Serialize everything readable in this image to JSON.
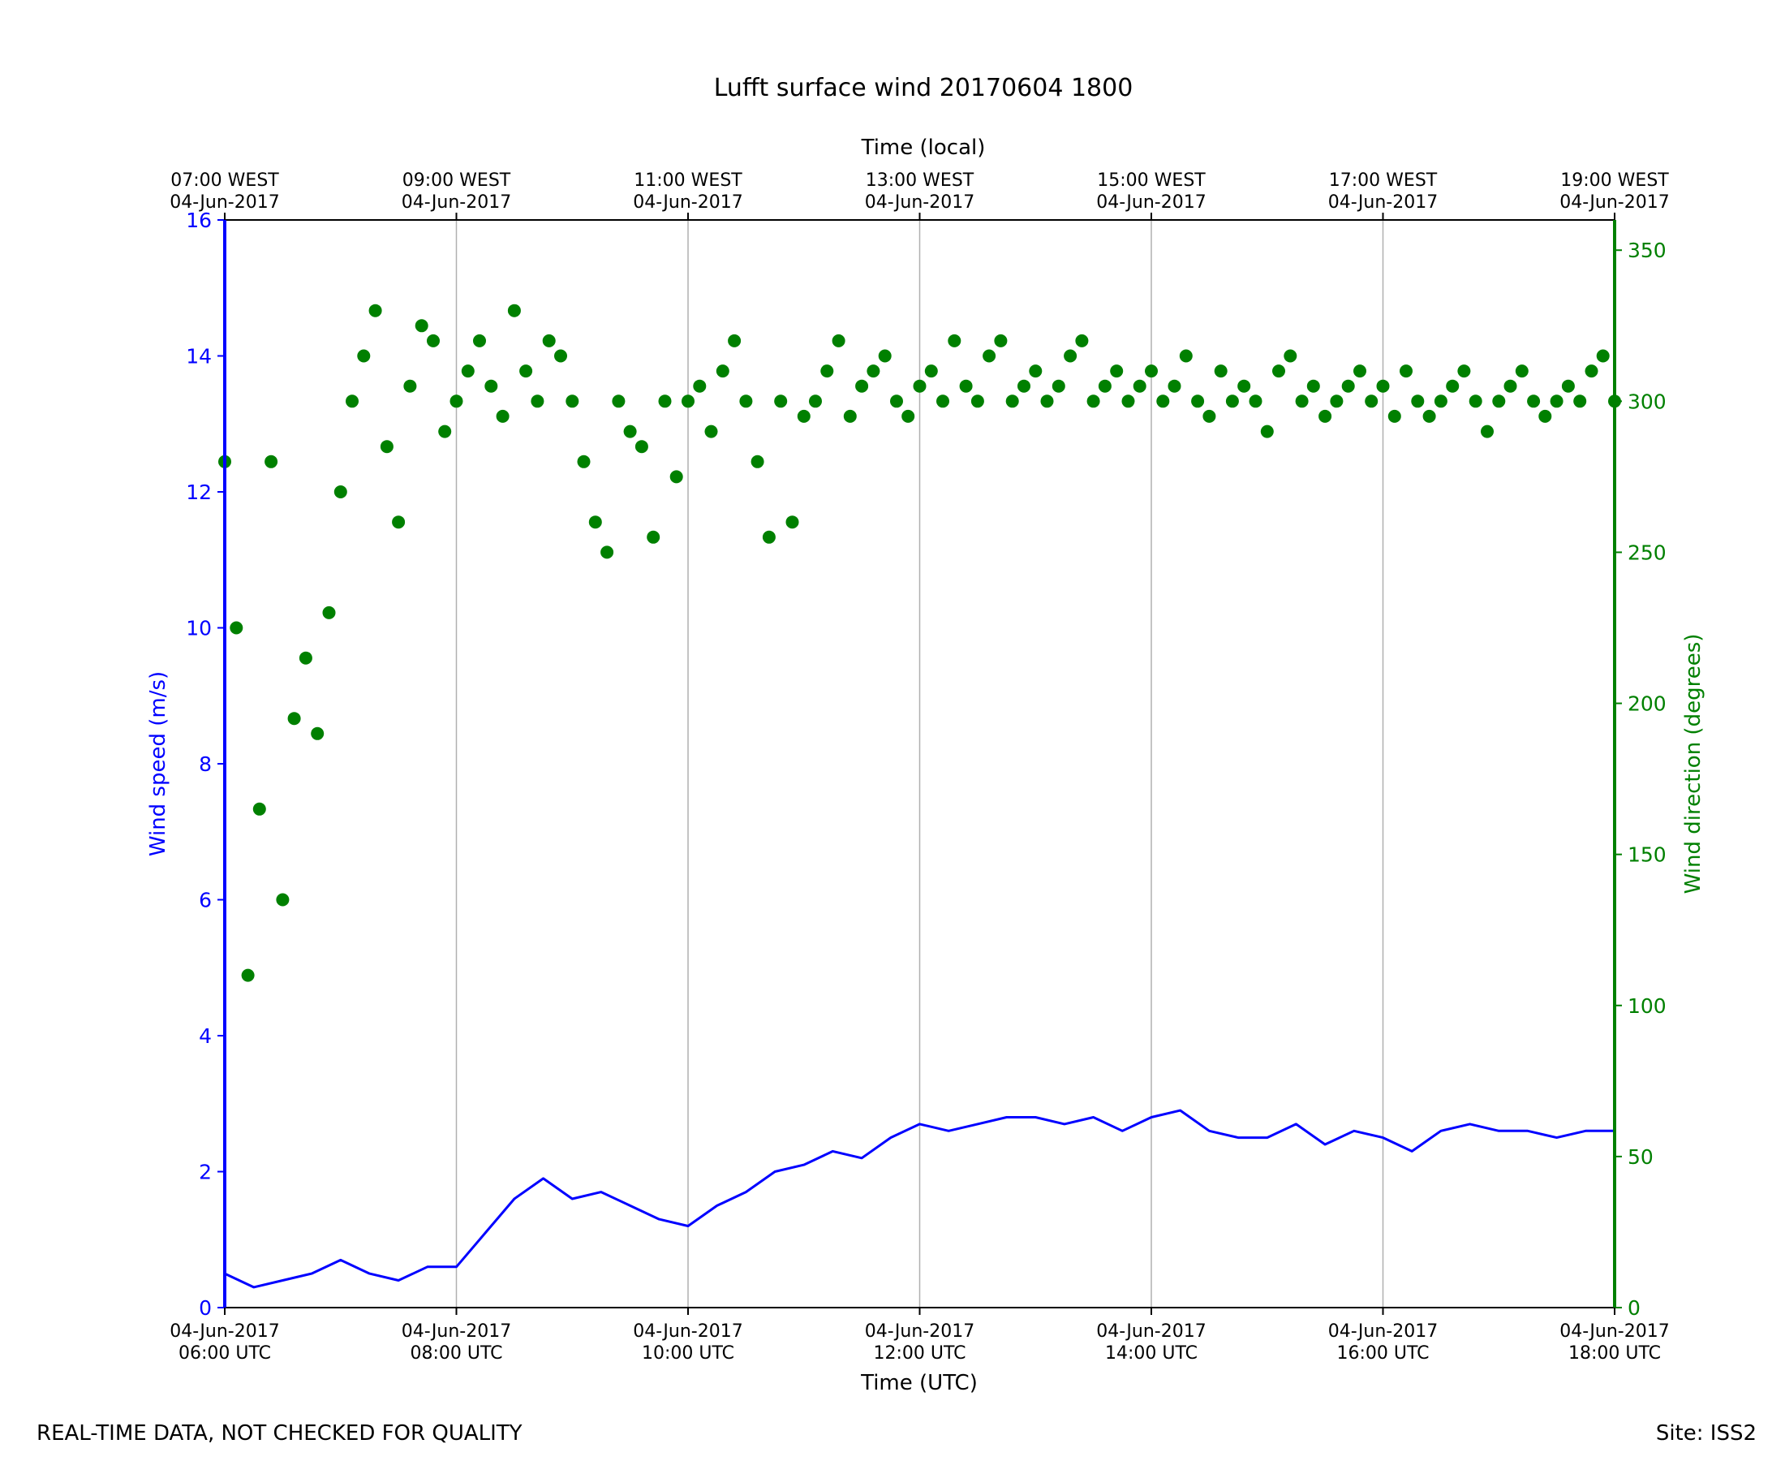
{
  "chart_data": {
    "type": "line+scatter",
    "title": "Lufft surface wind 20170604 1800",
    "xlabel": "Time (UTC)",
    "top_xlabel": "Time (local)",
    "ylabel_left": "Wind speed (m/s)",
    "ylabel_right": "Wind direction (degrees)",
    "xlim_hours_utc": [
      6,
      18
    ],
    "ylim_left": [
      0,
      16
    ],
    "ylim_right": [
      0,
      360
    ],
    "grid": "vertical",
    "colors": {
      "speed": "#0000ff",
      "direction": "#008000",
      "axis": "#000000",
      "grid": "#b0b0b0"
    },
    "left_ticks": [
      "0",
      "2",
      "4",
      "6",
      "8",
      "10",
      "12",
      "14",
      "16"
    ],
    "left_tick_values": [
      0,
      2,
      4,
      6,
      8,
      10,
      12,
      14,
      16
    ],
    "right_ticks": [
      "0",
      "50",
      "100",
      "150",
      "200",
      "250",
      "300",
      "350"
    ],
    "right_tick_values": [
      0,
      50,
      100,
      150,
      200,
      250,
      300,
      350
    ],
    "bottom_ticks": [
      {
        "hour": 6,
        "line1": "04-Jun-2017",
        "line2": "06:00 UTC"
      },
      {
        "hour": 8,
        "line1": "04-Jun-2017",
        "line2": "08:00 UTC"
      },
      {
        "hour": 10,
        "line1": "04-Jun-2017",
        "line2": "10:00 UTC"
      },
      {
        "hour": 12,
        "line1": "04-Jun-2017",
        "line2": "12:00 UTC"
      },
      {
        "hour": 14,
        "line1": "04-Jun-2017",
        "line2": "14:00 UTC"
      },
      {
        "hour": 16,
        "line1": "04-Jun-2017",
        "line2": "16:00 UTC"
      },
      {
        "hour": 18,
        "line1": "04-Jun-2017",
        "line2": "18:00 UTC"
      }
    ],
    "top_ticks": [
      {
        "hour": 6,
        "line1": "07:00 WEST",
        "line2": "04-Jun-2017"
      },
      {
        "hour": 8,
        "line1": "09:00 WEST",
        "line2": "04-Jun-2017"
      },
      {
        "hour": 10,
        "line1": "11:00 WEST",
        "line2": "04-Jun-2017"
      },
      {
        "hour": 12,
        "line1": "13:00 WEST",
        "line2": "04-Jun-2017"
      },
      {
        "hour": 14,
        "line1": "15:00 WEST",
        "line2": "04-Jun-2017"
      },
      {
        "hour": 16,
        "line1": "17:00 WEST",
        "line2": "04-Jun-2017"
      },
      {
        "hour": 18,
        "line1": "19:00 WEST",
        "line2": "04-Jun-2017"
      }
    ],
    "series": [
      {
        "name": "Wind speed",
        "axis": "left",
        "style": "line",
        "hours": [
          6.0,
          6.25,
          6.5,
          6.75,
          7.0,
          7.25,
          7.5,
          7.75,
          8.0,
          8.25,
          8.5,
          8.75,
          9.0,
          9.25,
          9.5,
          9.75,
          10.0,
          10.25,
          10.5,
          10.75,
          11.0,
          11.25,
          11.5,
          11.75,
          12.0,
          12.25,
          12.5,
          12.75,
          13.0,
          13.25,
          13.5,
          13.75,
          14.0,
          14.25,
          14.5,
          14.75,
          15.0,
          15.25,
          15.5,
          15.75,
          16.0,
          16.25,
          16.5,
          16.75,
          17.0,
          17.25,
          17.5,
          17.75,
          18.0
        ],
        "values": [
          0.5,
          0.3,
          0.4,
          0.5,
          0.7,
          0.5,
          0.4,
          0.6,
          0.6,
          1.1,
          1.6,
          1.9,
          1.6,
          1.7,
          1.5,
          1.3,
          1.2,
          1.5,
          1.7,
          2.0,
          2.1,
          2.3,
          2.2,
          2.5,
          2.7,
          2.6,
          2.7,
          2.8,
          2.8,
          2.7,
          2.8,
          2.6,
          2.8,
          2.9,
          2.6,
          2.5,
          2.5,
          2.7,
          2.4,
          2.6,
          2.5,
          2.3,
          2.6,
          2.7,
          2.6,
          2.6,
          2.5,
          2.6,
          2.6
        ]
      },
      {
        "name": "Wind direction",
        "axis": "right",
        "style": "scatter",
        "hours": [
          6.0,
          6.1,
          6.2,
          6.3,
          6.4,
          6.5,
          6.6,
          6.7,
          6.8,
          6.9,
          7.0,
          7.1,
          7.2,
          7.3,
          7.4,
          7.5,
          7.6,
          7.7,
          7.8,
          7.9,
          8.0,
          8.1,
          8.2,
          8.3,
          8.4,
          8.5,
          8.6,
          8.7,
          8.8,
          8.9,
          9.0,
          9.1,
          9.2,
          9.3,
          9.4,
          9.5,
          9.6,
          9.7,
          9.8,
          9.9,
          10.0,
          10.1,
          10.2,
          10.3,
          10.4,
          10.5,
          10.6,
          10.7,
          10.8,
          10.9,
          11.0,
          11.1,
          11.2,
          11.3,
          11.4,
          11.5,
          11.6,
          11.7,
          11.8,
          11.9,
          12.0,
          12.1,
          12.2,
          12.3,
          12.4,
          12.5,
          12.6,
          12.7,
          12.8,
          12.9,
          13.0,
          13.1,
          13.2,
          13.3,
          13.4,
          13.5,
          13.6,
          13.7,
          13.8,
          13.9,
          14.0,
          14.1,
          14.2,
          14.3,
          14.4,
          14.5,
          14.6,
          14.7,
          14.8,
          14.9,
          15.0,
          15.1,
          15.2,
          15.3,
          15.4,
          15.5,
          15.6,
          15.7,
          15.8,
          15.9,
          16.0,
          16.1,
          16.2,
          16.3,
          16.4,
          16.5,
          16.6,
          16.7,
          16.8,
          16.9,
          17.0,
          17.1,
          17.2,
          17.3,
          17.4,
          17.5,
          17.6,
          17.7,
          17.8,
          17.9,
          18.0
        ],
        "values": [
          280,
          225,
          110,
          165,
          280,
          135,
          195,
          215,
          190,
          230,
          270,
          300,
          315,
          330,
          285,
          260,
          305,
          325,
          320,
          290,
          300,
          310,
          320,
          305,
          295,
          330,
          310,
          300,
          320,
          315,
          300,
          280,
          260,
          250,
          300,
          290,
          285,
          255,
          300,
          275,
          300,
          305,
          290,
          310,
          320,
          300,
          280,
          255,
          300,
          260,
          295,
          300,
          310,
          320,
          295,
          305,
          310,
          315,
          300,
          295,
          305,
          310,
          300,
          320,
          305,
          300,
          315,
          320,
          300,
          305,
          310,
          300,
          305,
          315,
          320,
          300,
          305,
          310,
          300,
          305,
          310,
          300,
          305,
          315,
          300,
          295,
          310,
          300,
          305,
          300,
          290,
          310,
          315,
          300,
          305,
          295,
          300,
          305,
          310,
          300,
          305,
          295,
          310,
          300,
          295,
          300,
          305,
          310,
          300,
          290,
          300,
          305,
          310,
          300,
          295,
          300,
          305,
          300,
          310,
          315,
          300
        ]
      }
    ]
  },
  "footer": {
    "left": "REAL-TIME DATA, NOT CHECKED FOR QUALITY",
    "right": "Site: ISS2"
  }
}
